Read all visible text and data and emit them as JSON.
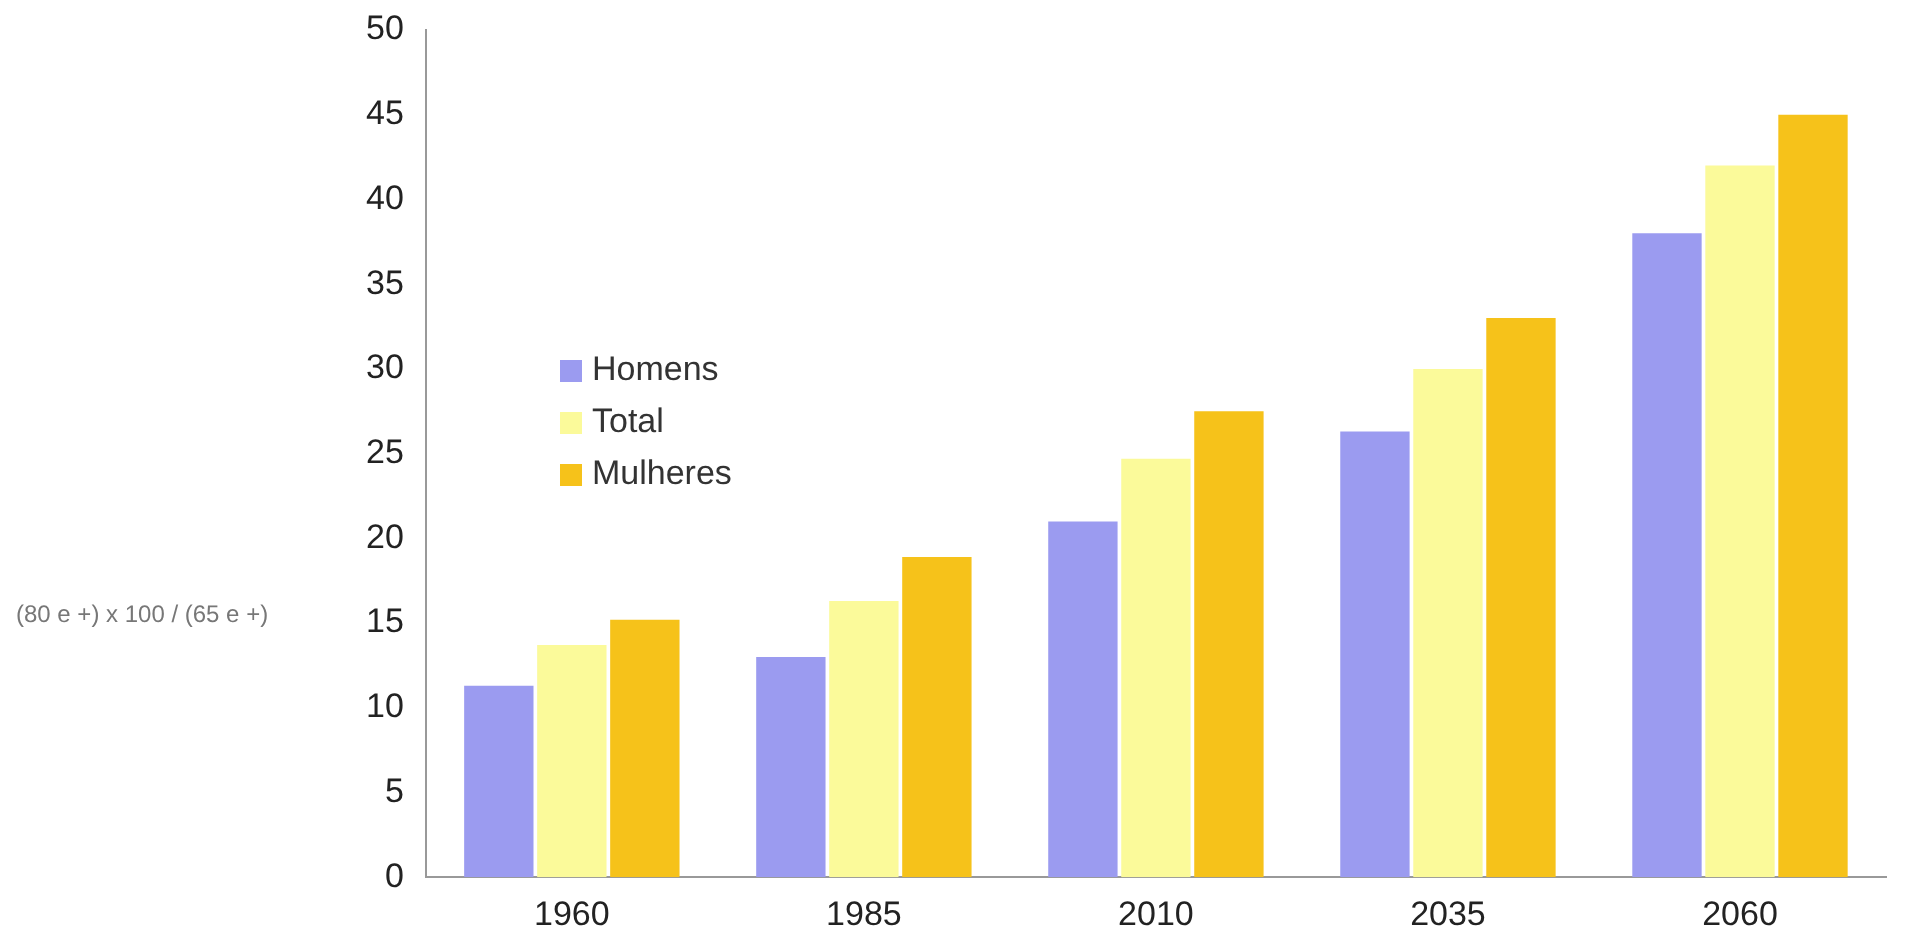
{
  "chart_data": {
    "type": "bar",
    "ylabel": "(80 e +) x 100 / (65 e +)",
    "categories": [
      "1960",
      "1985",
      "2010",
      "2035",
      "2060"
    ],
    "series": [
      {
        "name": "Homens",
        "color": "#9b9bf0",
        "values": [
          11.3,
          13,
          21,
          26.3,
          38
        ]
      },
      {
        "name": "Total",
        "color": "#fbfa9a",
        "values": [
          13.7,
          16.3,
          24.7,
          30,
          42
        ]
      },
      {
        "name": "Mulheres",
        "color": "#f6c21a",
        "values": [
          15.2,
          18.9,
          27.5,
          33,
          45
        ]
      }
    ],
    "ylim": [
      0,
      50
    ],
    "yticks": [
      0,
      5,
      10,
      15,
      20,
      25,
      30,
      35,
      40,
      45,
      50
    ],
    "grid": false,
    "legend": "left"
  }
}
